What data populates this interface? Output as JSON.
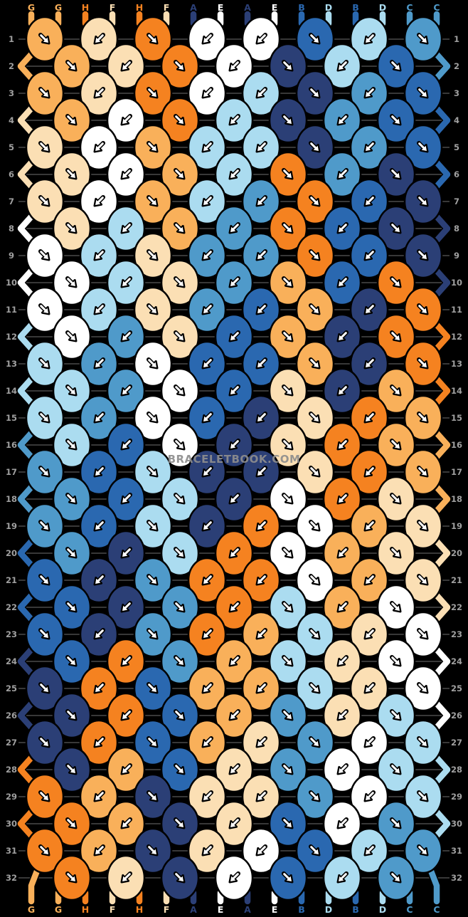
{
  "watermark": "BRACELETBOOK.COM",
  "palette": {
    "A": "#2b3f76",
    "B": "#2a68b0",
    "C": "#4f9aca",
    "D": "#abdcf0",
    "E": "#ffffff",
    "F": "#fbdfb4",
    "G": "#f9b05a",
    "H": "#f58220"
  },
  "ui_colors": {
    "background": "#000000",
    "row_line": "#6f6f6f",
    "row_number": "#a0a0a0",
    "arrow": "#ffffff",
    "arrow_outline": "#000000"
  },
  "top_labels": [
    "G",
    "G",
    "H",
    "F",
    "H",
    "F",
    "A",
    "E",
    "A",
    "E",
    "B",
    "D",
    "B",
    "D",
    "C",
    "C"
  ],
  "bottom_labels": [
    "G",
    "G",
    "H",
    "F",
    "H",
    "F",
    "A",
    "E",
    "A",
    "E",
    "B",
    "D",
    "B",
    "D",
    "C",
    "C"
  ],
  "arrow_legend": {
    "dr": "down-right knot",
    "dl": "down-left knot"
  },
  "rows": [
    {
      "num": 1,
      "knots": [
        "Gdr",
        "Fdl",
        "Hdr",
        "Edl",
        "Edl",
        "Bdr",
        "Ddl",
        "Cdr"
      ]
    },
    {
      "num": 2,
      "knots": [
        "Gdr",
        "Fdl",
        "Hdr",
        "Edl",
        "Adr",
        "Ddl",
        "Bdr"
      ]
    },
    {
      "num": 3,
      "knots": [
        "Gdr",
        "Fdl",
        "Hdr",
        "Edl",
        "Ddl",
        "Adr",
        "Cdl",
        "Bdr"
      ]
    },
    {
      "num": 4,
      "knots": [
        "Gdr",
        "Edl",
        "Hdr",
        "Ddl",
        "Adr",
        "Cdl",
        "Bdr"
      ]
    },
    {
      "num": 5,
      "knots": [
        "Fdr",
        "Edl",
        "Gdr",
        "Ddl",
        "Ddl",
        "Adr",
        "Cdl",
        "Bdr"
      ]
    },
    {
      "num": 6,
      "knots": [
        "Fdr",
        "Edl",
        "Gdr",
        "Ddl",
        "Hdr",
        "Cdl",
        "Adr"
      ]
    },
    {
      "num": 7,
      "knots": [
        "Fdr",
        "Edl",
        "Gdr",
        "Ddl",
        "Cdl",
        "Hdr",
        "Bdl",
        "Adr"
      ]
    },
    {
      "num": 8,
      "knots": [
        "Fdr",
        "Ddl",
        "Gdr",
        "Cdl",
        "Hdr",
        "Bdl",
        "Adr"
      ]
    },
    {
      "num": 9,
      "knots": [
        "Edr",
        "Ddl",
        "Fdr",
        "Cdl",
        "Cdl",
        "Hdr",
        "Bdl",
        "Adr"
      ]
    },
    {
      "num": 10,
      "knots": [
        "Edr",
        "Ddl",
        "Fdr",
        "Cdl",
        "Gdr",
        "Bdl",
        "Hdr"
      ]
    },
    {
      "num": 11,
      "knots": [
        "Edr",
        "Ddl",
        "Fdr",
        "Cdl",
        "Bdl",
        "Gdr",
        "Adl",
        "Hdr"
      ]
    },
    {
      "num": 12,
      "knots": [
        "Edr",
        "Cdl",
        "Fdr",
        "Bdl",
        "Gdr",
        "Adl",
        "Hdr"
      ]
    },
    {
      "num": 13,
      "knots": [
        "Ddr",
        "Cdl",
        "Edr",
        "Bdl",
        "Bdl",
        "Gdr",
        "Adl",
        "Hdr"
      ]
    },
    {
      "num": 14,
      "knots": [
        "Ddr",
        "Cdl",
        "Edr",
        "Bdl",
        "Fdr",
        "Adl",
        "Gdr"
      ]
    },
    {
      "num": 15,
      "knots": [
        "Ddr",
        "Cdl",
        "Edr",
        "Bdl",
        "Adl",
        "Fdr",
        "Hdl",
        "Gdr"
      ]
    },
    {
      "num": 16,
      "knots": [
        "Ddr",
        "Bdl",
        "Edr",
        "Adl",
        "Fdr",
        "Hdl",
        "Gdr"
      ]
    },
    {
      "num": 17,
      "knots": [
        "Cdr",
        "Bdl",
        "Ddr",
        "Adl",
        "Adl",
        "Fdr",
        "Hdl",
        "Gdr"
      ]
    },
    {
      "num": 18,
      "knots": [
        "Cdr",
        "Bdl",
        "Ddr",
        "Adl",
        "Edr",
        "Hdl",
        "Fdr"
      ]
    },
    {
      "num": 19,
      "knots": [
        "Cdr",
        "Bdl",
        "Ddr",
        "Adl",
        "Hdl",
        "Edr",
        "Gdl",
        "Fdr"
      ]
    },
    {
      "num": 20,
      "knots": [
        "Cdr",
        "Adl",
        "Ddr",
        "Hdl",
        "Edr",
        "Gdl",
        "Fdr"
      ]
    },
    {
      "num": 21,
      "knots": [
        "Bdr",
        "Adl",
        "Cdr",
        "Hdl",
        "Hdl",
        "Edr",
        "Gdl",
        "Fdr"
      ]
    },
    {
      "num": 22,
      "knots": [
        "Bdr",
        "Adl",
        "Cdr",
        "Hdl",
        "Ddr",
        "Gdl",
        "Edr"
      ]
    },
    {
      "num": 23,
      "knots": [
        "Bdr",
        "Adl",
        "Cdr",
        "Hdl",
        "Gdl",
        "Ddr",
        "Fdl",
        "Edr"
      ]
    },
    {
      "num": 24,
      "knots": [
        "Bdr",
        "Hdl",
        "Cdr",
        "Gdl",
        "Ddr",
        "Fdl",
        "Edr"
      ]
    },
    {
      "num": 25,
      "knots": [
        "Adr",
        "Hdl",
        "Bdr",
        "Gdl",
        "Gdl",
        "Ddr",
        "Fdl",
        "Edr"
      ]
    },
    {
      "num": 26,
      "knots": [
        "Adr",
        "Hdl",
        "Bdr",
        "Gdl",
        "Cdr",
        "Fdl",
        "Ddr"
      ]
    },
    {
      "num": 27,
      "knots": [
        "Adr",
        "Hdl",
        "Bdr",
        "Gdl",
        "Fdl",
        "Cdr",
        "Edl",
        "Ddr"
      ]
    },
    {
      "num": 28,
      "knots": [
        "Adr",
        "Gdl",
        "Bdr",
        "Fdl",
        "Cdr",
        "Edl",
        "Ddr"
      ]
    },
    {
      "num": 29,
      "knots": [
        "Hdr",
        "Gdl",
        "Adr",
        "Fdl",
        "Fdl",
        "Cdr",
        "Edl",
        "Ddr"
      ]
    },
    {
      "num": 30,
      "knots": [
        "Hdr",
        "Gdl",
        "Adr",
        "Fdl",
        "Bdr",
        "Edl",
        "Cdr"
      ]
    },
    {
      "num": 31,
      "knots": [
        "Hdr",
        "Gdl",
        "Adr",
        "Fdl",
        "Edl",
        "Bdr",
        "Ddl",
        "Cdr"
      ]
    },
    {
      "num": 32,
      "knots": [
        "Hdr",
        "Fdl",
        "Adr",
        "Edl",
        "Bdr",
        "Ddl",
        "Cdr"
      ]
    }
  ]
}
